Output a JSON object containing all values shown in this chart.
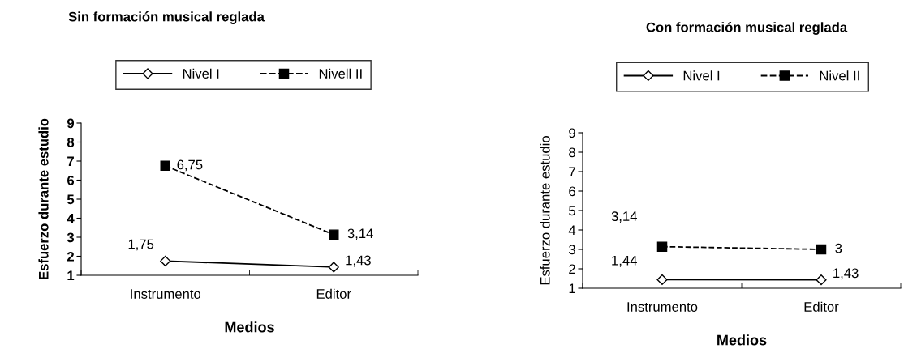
{
  "chart_data": [
    {
      "type": "line",
      "title": "Sin formación musical reglada",
      "xlabel": "Medios",
      "ylabel": "Esfuerzo durante estudio",
      "categories": [
        "Instrumento",
        "Editor"
      ],
      "ylim": [
        1,
        9
      ],
      "yticks": [
        1,
        2,
        3,
        4,
        5,
        6,
        7,
        8,
        9
      ],
      "grid": false,
      "legend": "top",
      "series": [
        {
          "name": "Nivel I",
          "color": "#000000",
          "values": [
            1.75,
            1.43
          ],
          "value_labels": [
            "1,75",
            "1,43"
          ],
          "marker": "diamond",
          "line_style": "solid"
        },
        {
          "name": "Nivell II",
          "color": "#000000",
          "values": [
            6.75,
            3.14
          ],
          "value_labels": [
            "6,75",
            "3,14"
          ],
          "marker": "square",
          "line_style": "dashed"
        }
      ]
    },
    {
      "type": "line",
      "title": "Con formación musical reglada",
      "xlabel": "Medios",
      "ylabel": "Esfuerzo durante estudio",
      "categories": [
        "Instrumento",
        "Editor"
      ],
      "ylim": [
        1,
        9
      ],
      "yticks": [
        1,
        2,
        3,
        4,
        5,
        6,
        7,
        8,
        9
      ],
      "grid": false,
      "legend": "top",
      "series": [
        {
          "name": "Nivel I",
          "color": "#000000",
          "values": [
            1.44,
            1.43
          ],
          "value_labels": [
            "1,44",
            "1,43"
          ],
          "marker": "diamond",
          "line_style": "solid"
        },
        {
          "name": "Nivel II",
          "color": "#000000",
          "values": [
            3.14,
            3
          ],
          "value_labels": [
            "3,14",
            "3"
          ],
          "marker": "square",
          "line_style": "dashed"
        }
      ]
    }
  ]
}
